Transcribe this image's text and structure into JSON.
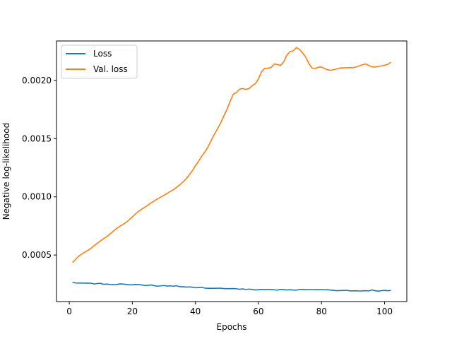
{
  "chart_data": {
    "type": "line",
    "title": "",
    "xlabel": "Epochs",
    "ylabel": "Negative log-likelihood",
    "xlim": [
      -4.05,
      107.05
    ],
    "ylim": [
      0.0001,
      0.00234
    ],
    "xticks": [
      0,
      20,
      40,
      60,
      80,
      100
    ],
    "xtick_labels": [
      "0",
      "20",
      "40",
      "60",
      "80",
      "100"
    ],
    "yticks": [
      0.0005,
      0.001,
      0.0015,
      0.002
    ],
    "ytick_labels": [
      "0.0005",
      "0.0010",
      "0.0015",
      "0.0020"
    ],
    "grid": false,
    "legend_position": "top-left",
    "series": [
      {
        "name": "Loss",
        "color": "#1f77b4",
        "x": [
          1,
          2,
          3,
          4,
          5,
          6,
          7,
          8,
          9,
          10,
          11,
          12,
          13,
          14,
          15,
          16,
          17,
          18,
          19,
          20,
          21,
          22,
          23,
          24,
          25,
          26,
          27,
          28,
          29,
          30,
          31,
          32,
          33,
          34,
          35,
          36,
          37,
          38,
          39,
          40,
          41,
          42,
          43,
          44,
          45,
          46,
          47,
          48,
          49,
          50,
          51,
          52,
          53,
          54,
          55,
          56,
          57,
          58,
          59,
          60,
          61,
          62,
          63,
          64,
          65,
          66,
          67,
          68,
          69,
          70,
          71,
          72,
          73,
          74,
          75,
          76,
          77,
          78,
          79,
          80,
          81,
          82,
          83,
          84,
          85,
          86,
          87,
          88,
          89,
          90,
          91,
          92,
          93,
          94,
          95,
          96,
          97,
          98,
          99,
          100,
          101,
          102
        ],
        "values": [
          0.000267,
          0.00026,
          0.000259,
          0.00026,
          0.000258,
          0.000259,
          0.000257,
          0.000251,
          0.000256,
          0.000256,
          0.000248,
          0.000251,
          0.000246,
          0.000245,
          0.000246,
          0.000252,
          0.000251,
          0.000247,
          0.000244,
          0.000244,
          0.000247,
          0.000245,
          0.000243,
          0.000238,
          0.00024,
          0.000243,
          0.000236,
          0.000232,
          0.000235,
          0.000238,
          0.000233,
          0.000235,
          0.000232,
          0.000236,
          0.000228,
          0.000228,
          0.000225,
          0.000226,
          0.000224,
          0.000219,
          0.00022,
          0.000222,
          0.000216,
          0.000214,
          0.000214,
          0.000214,
          0.000215,
          0.000215,
          0.000212,
          0.000211,
          0.000211,
          0.000212,
          0.00021,
          0.000206,
          0.000209,
          0.000204,
          0.000207,
          0.000205,
          0.0002,
          0.000202,
          0.000205,
          0.000202,
          0.000205,
          0.000203,
          0.000201,
          0.000198,
          0.000205,
          0.000203,
          0.0002,
          0.000202,
          0.000199,
          0.000198,
          0.000204,
          0.000205,
          0.000203,
          0.000204,
          0.000204,
          0.000202,
          0.000203,
          0.000204,
          0.000201,
          0.000202,
          0.000198,
          0.000196,
          0.000193,
          0.000195,
          0.000195,
          0.000197,
          0.000192,
          0.000192,
          0.000193,
          0.000191,
          0.000192,
          0.000194,
          0.000191,
          0.0002,
          0.000193,
          0.00019,
          0.000194,
          0.000196,
          0.000193,
          0.000196
        ]
      },
      {
        "name": "Val. loss",
        "color": "#ff7f0e",
        "x": [
          1,
          2,
          3,
          4,
          5,
          6,
          7,
          8,
          9,
          10,
          11,
          12,
          13,
          14,
          15,
          16,
          17,
          18,
          19,
          20,
          21,
          22,
          23,
          24,
          25,
          26,
          27,
          28,
          29,
          30,
          31,
          32,
          33,
          34,
          35,
          36,
          37,
          38,
          39,
          40,
          41,
          42,
          43,
          44,
          45,
          46,
          47,
          48,
          49,
          50,
          51,
          52,
          53,
          54,
          55,
          56,
          57,
          58,
          59,
          60,
          61,
          62,
          63,
          64,
          65,
          66,
          67,
          68,
          69,
          70,
          71,
          72,
          73,
          74,
          75,
          76,
          77,
          78,
          79,
          80,
          81,
          82,
          83,
          84,
          85,
          86,
          87,
          88,
          89,
          90,
          91,
          92,
          93,
          94,
          95,
          96,
          97,
          98,
          99,
          100,
          101,
          102
        ],
        "values": [
          0.000436,
          0.000462,
          0.00049,
          0.000509,
          0.000527,
          0.000542,
          0.00056,
          0.000583,
          0.000604,
          0.000624,
          0.000642,
          0.00066,
          0.000683,
          0.000706,
          0.000728,
          0.000747,
          0.000763,
          0.000781,
          0.000803,
          0.000828,
          0.000854,
          0.000876,
          0.000895,
          0.000912,
          0.000929,
          0.000949,
          0.000966,
          0.000983,
          0.000998,
          0.001013,
          0.001029,
          0.001046,
          0.001061,
          0.001081,
          0.001103,
          0.001127,
          0.001153,
          0.001187,
          0.001223,
          0.001268,
          0.001305,
          0.00135,
          0.001386,
          0.00143,
          0.001485,
          0.001537,
          0.001585,
          0.001636,
          0.001695,
          0.001751,
          0.00182,
          0.001882,
          0.001897,
          0.001925,
          0.001932,
          0.001923,
          0.001931,
          0.001956,
          0.001972,
          0.002014,
          0.002076,
          0.002105,
          0.002106,
          0.002112,
          0.002142,
          0.002137,
          0.00213,
          0.00216,
          0.002218,
          0.002249,
          0.002255,
          0.002283,
          0.002268,
          0.002237,
          0.0022,
          0.002145,
          0.002107,
          0.002104,
          0.002114,
          0.002116,
          0.002102,
          0.002091,
          0.002088,
          0.002094,
          0.002101,
          0.002108,
          0.002109,
          0.00211,
          0.002111,
          0.00211,
          0.002117,
          0.002126,
          0.002136,
          0.002142,
          0.002129,
          0.002118,
          0.002116,
          0.002121,
          0.002126,
          0.002131,
          0.002139,
          0.002158
        ]
      }
    ]
  }
}
